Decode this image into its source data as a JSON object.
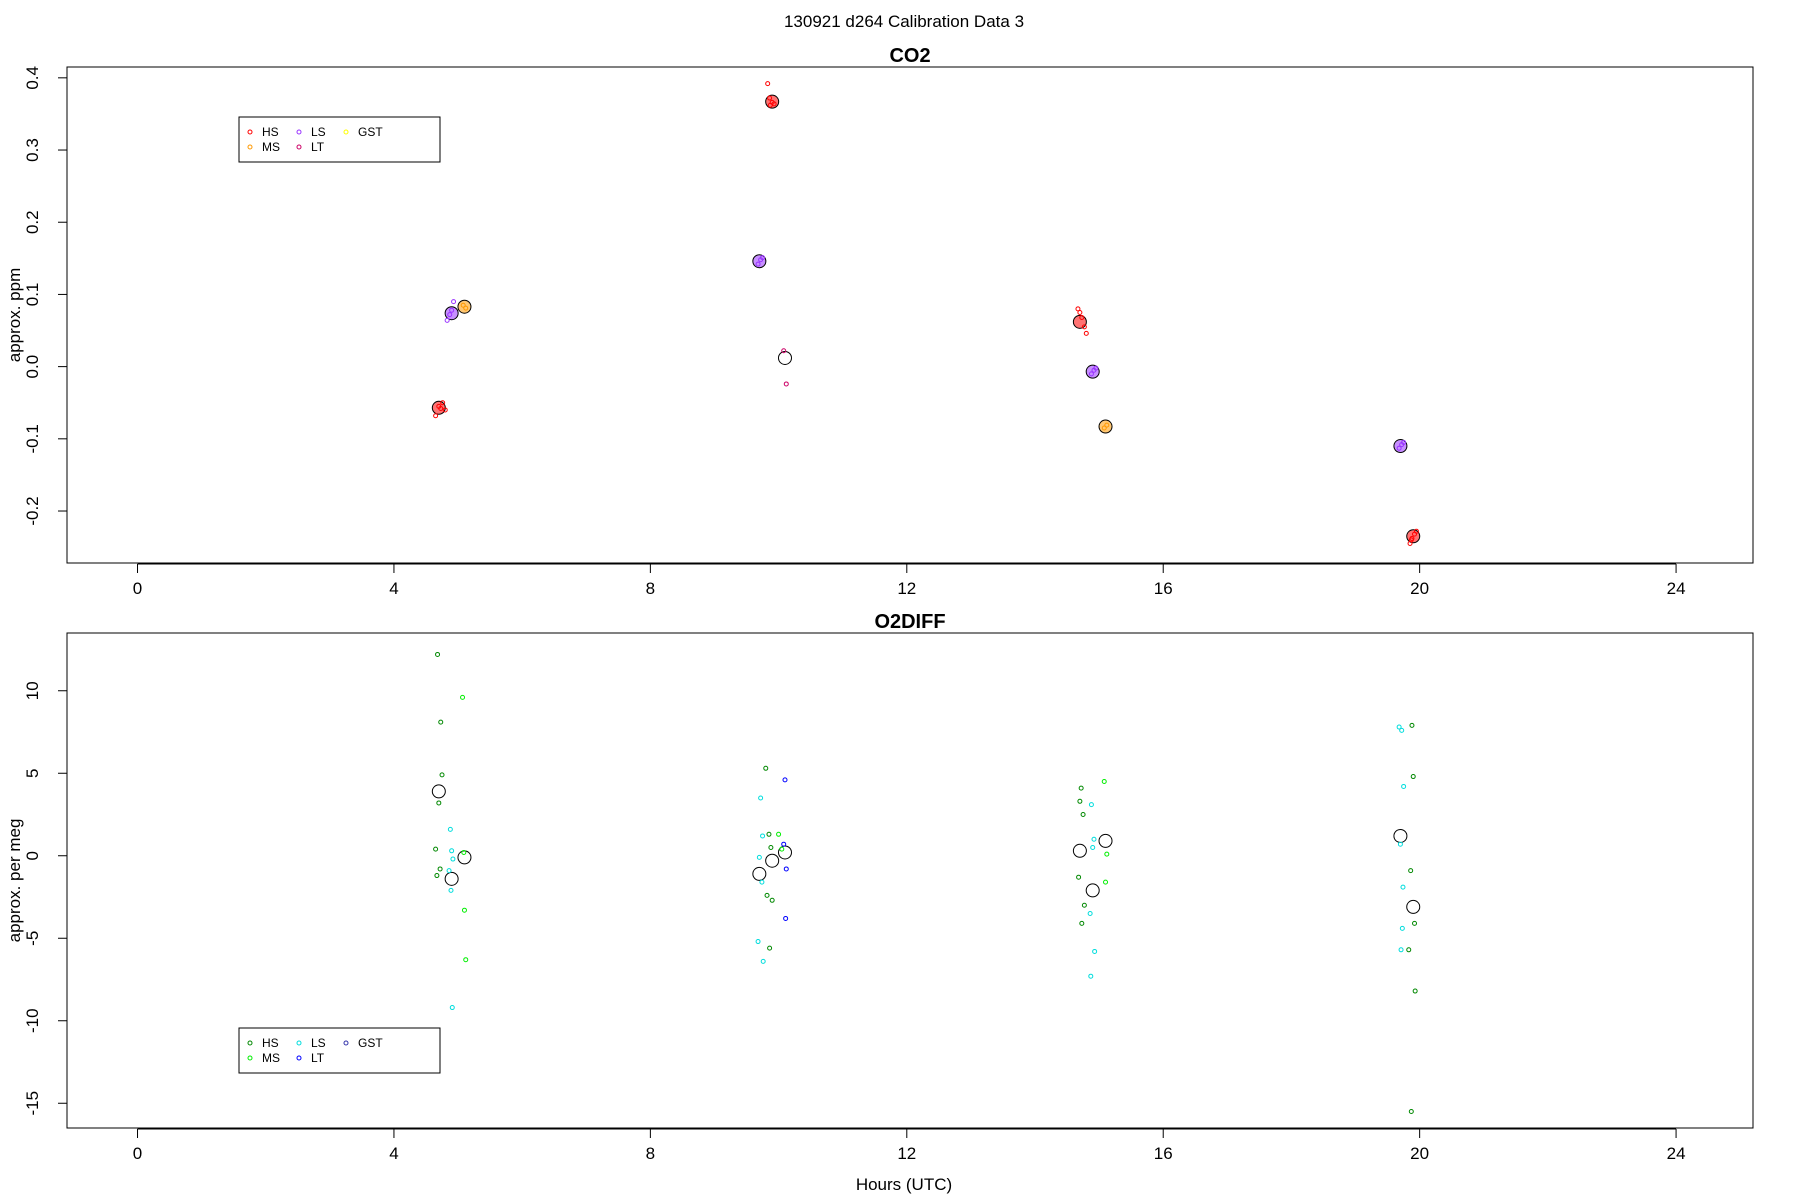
{
  "figure_title": "130921   d264   Calibration Data 3",
  "x_axis_label": "Hours (UTC)",
  "chart_data": [
    {
      "type": "scatter",
      "title": "CO2",
      "xlabel": "",
      "ylabel": "approx. ppm",
      "xlim": [
        -1.1,
        25.2
      ],
      "ylim": [
        -0.272,
        0.415
      ],
      "x_ticks": [
        0,
        4,
        8,
        12,
        16,
        20,
        24
      ],
      "x_tick_labels": [
        "0",
        "4",
        "8",
        "12",
        "16",
        "20",
        "24"
      ],
      "y_ticks": [
        -0.2,
        -0.1,
        0.0,
        0.1,
        0.2,
        0.3,
        0.4
      ],
      "y_tick_labels": [
        "-0.2",
        "-0.1",
        "0.0",
        "0.1",
        "0.2",
        "0.3",
        "0.4"
      ],
      "grid": false,
      "legend": {
        "placement": "top-left",
        "entries": [
          {
            "label": "HS",
            "color": "#ff0000"
          },
          {
            "label": "MS",
            "color": "#ff9900"
          },
          {
            "label": "LS",
            "color": "#9933ff"
          },
          {
            "label": "LT",
            "color": "#cc0066"
          },
          {
            "label": "GST",
            "color": "#ffff00"
          }
        ]
      },
      "means": [
        {
          "x": 4.7,
          "y": -0.057,
          "fill": "#ff0000"
        },
        {
          "x": 4.9,
          "y": 0.074,
          "fill": "#9933ff"
        },
        {
          "x": 5.1,
          "y": 0.083,
          "fill": "#ff9900"
        },
        {
          "x": 9.7,
          "y": 0.146,
          "fill": "#9933ff"
        },
        {
          "x": 9.9,
          "y": 0.367,
          "fill": "#ff0000"
        },
        {
          "x": 10.1,
          "y": 0.012,
          "fill": "none"
        },
        {
          "x": 14.7,
          "y": 0.062,
          "fill": "#ff0000"
        },
        {
          "x": 14.9,
          "y": -0.007,
          "fill": "#9933ff"
        },
        {
          "x": 15.1,
          "y": -0.083,
          "fill": "#ff9900"
        },
        {
          "x": 19.7,
          "y": -0.11,
          "fill": "#9933ff"
        },
        {
          "x": 19.9,
          "y": -0.235,
          "fill": "#ff0000"
        }
      ],
      "series": [
        {
          "name": "HS",
          "color": "#ff0000",
          "x": [
            4.65,
            4.7,
            4.73,
            4.76,
            4.8,
            9.83,
            9.87,
            9.9,
            9.93,
            9.86,
            14.67,
            14.7,
            14.73,
            14.77,
            14.8,
            19.85,
            19.88,
            19.92,
            19.95,
            19.87
          ],
          "y": [
            -0.068,
            -0.055,
            -0.058,
            -0.05,
            -0.06,
            0.392,
            0.362,
            0.366,
            0.364,
            0.372,
            0.08,
            0.075,
            0.068,
            0.055,
            0.046,
            -0.245,
            -0.238,
            -0.232,
            -0.228,
            -0.24
          ]
        },
        {
          "name": "MS",
          "color": "#ff9900",
          "x": [
            5.08,
            5.12,
            15.08,
            15.12
          ],
          "y": [
            0.085,
            0.081,
            -0.085,
            -0.081
          ]
        },
        {
          "name": "LS",
          "color": "#9933ff",
          "x": [
            4.83,
            4.87,
            4.9,
            4.93,
            9.68,
            9.72,
            9.75,
            14.88,
            14.92,
            14.95,
            19.68,
            19.72,
            19.75
          ],
          "y": [
            0.064,
            0.072,
            0.078,
            0.09,
            0.142,
            0.148,
            0.151,
            -0.01,
            -0.005,
            -0.002,
            -0.113,
            -0.108,
            -0.105
          ]
        },
        {
          "name": "LT",
          "color": "#cc0066",
          "x": [
            10.08,
            10.12
          ],
          "y": [
            0.022,
            -0.024
          ]
        }
      ]
    },
    {
      "type": "scatter",
      "title": "O2DIFF",
      "xlabel": "Hours (UTC)",
      "ylabel": "approx. per meg",
      "xlim": [
        -1.1,
        25.2
      ],
      "ylim": [
        -16.5,
        13.5
      ],
      "x_ticks": [
        0,
        4,
        8,
        12,
        16,
        20,
        24
      ],
      "x_tick_labels": [
        "0",
        "4",
        "8",
        "12",
        "16",
        "20",
        "24"
      ],
      "y_ticks": [
        -15,
        -10,
        -5,
        0,
        5,
        10
      ],
      "y_tick_labels": [
        "-15",
        "-10",
        "-5",
        "0",
        "5",
        "10"
      ],
      "grid": false,
      "legend": {
        "placement": "bottom-left",
        "entries": [
          {
            "label": "HS",
            "color": "#008800"
          },
          {
            "label": "MS",
            "color": "#00ee00"
          },
          {
            "label": "LS",
            "color": "#00dddd"
          },
          {
            "label": "LT",
            "color": "#0000ff"
          },
          {
            "label": "GST",
            "color": "#3333aa"
          }
        ]
      },
      "means": [
        {
          "x": 4.7,
          "y": 3.9,
          "fill": "none"
        },
        {
          "x": 4.9,
          "y": -1.4,
          "fill": "none"
        },
        {
          "x": 5.1,
          "y": -0.1,
          "fill": "none"
        },
        {
          "x": 9.7,
          "y": -1.1,
          "fill": "none"
        },
        {
          "x": 9.9,
          "y": -0.3,
          "fill": "none"
        },
        {
          "x": 10.1,
          "y": 0.2,
          "fill": "none"
        },
        {
          "x": 14.7,
          "y": 0.3,
          "fill": "none"
        },
        {
          "x": 14.9,
          "y": -2.1,
          "fill": "none"
        },
        {
          "x": 15.1,
          "y": 0.9,
          "fill": "none"
        },
        {
          "x": 19.7,
          "y": 1.2,
          "fill": "none"
        },
        {
          "x": 19.9,
          "y": -3.1,
          "fill": "none"
        }
      ],
      "series": [
        {
          "name": "HS",
          "color": "#008800",
          "x": [
            4.68,
            4.73,
            4.75,
            4.7,
            4.65,
            4.72,
            4.67,
            9.8,
            9.85,
            9.88,
            9.82,
            9.9,
            9.86,
            14.72,
            14.7,
            14.75,
            14.68,
            14.77,
            14.73,
            19.88,
            19.9,
            19.86,
            19.92,
            19.83,
            19.93,
            19.87
          ],
          "y": [
            12.2,
            8.1,
            4.9,
            3.2,
            0.4,
            -0.8,
            -1.2,
            5.3,
            1.3,
            0.5,
            -2.4,
            -2.7,
            -5.6,
            4.1,
            3.3,
            2.5,
            -1.3,
            -3.0,
            -4.1,
            7.9,
            4.8,
            -0.9,
            -4.1,
            -5.7,
            -8.2,
            -15.5
          ]
        },
        {
          "name": "MS",
          "color": "#00ee00",
          "x": [
            5.07,
            5.1,
            5.12,
            5.09,
            15.08,
            15.12,
            15.1,
            10.0,
            10.05
          ],
          "y": [
            9.6,
            -3.3,
            -6.3,
            0.2,
            4.5,
            0.1,
            -1.6,
            1.3,
            0.4
          ]
        },
        {
          "name": "LS",
          "color": "#00dddd",
          "x": [
            4.88,
            4.9,
            4.92,
            4.86,
            4.89,
            4.91,
            9.72,
            9.75,
            9.7,
            9.68,
            9.76,
            9.74,
            14.88,
            14.92,
            14.9,
            14.86,
            14.93,
            14.87,
            19.68,
            19.72,
            19.75,
            19.7,
            19.74,
            19.73,
            19.71
          ],
          "y": [
            1.6,
            0.3,
            -0.2,
            -0.9,
            -2.1,
            -9.2,
            3.5,
            1.2,
            -0.1,
            -5.2,
            -6.4,
            -1.6,
            3.1,
            1.0,
            0.5,
            -3.5,
            -5.8,
            -7.3,
            7.8,
            7.6,
            4.2,
            0.7,
            -1.9,
            -4.4,
            -5.7
          ]
        },
        {
          "name": "LT",
          "color": "#0000ff",
          "x": [
            10.1,
            10.08,
            10.12,
            10.11
          ],
          "y": [
            4.6,
            0.7,
            -0.8,
            -3.8
          ]
        }
      ]
    }
  ]
}
